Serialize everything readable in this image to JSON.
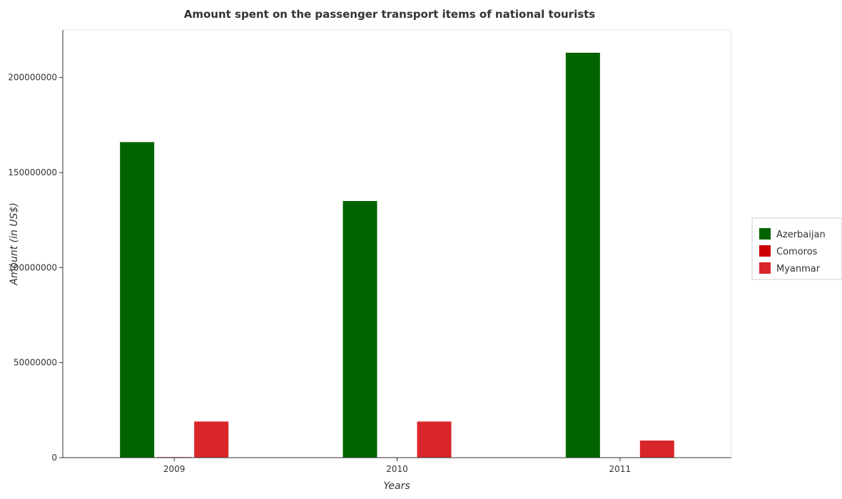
{
  "chart_data": {
    "type": "bar",
    "title": "Amount spent on the passenger transport items of national tourists",
    "xlabel": "Years",
    "ylabel": "Amount (in US$)",
    "categories": [
      "2009",
      "2010",
      "2011"
    ],
    "series": [
      {
        "name": "Azerbaijan",
        "color": "#006400",
        "values": [
          166000000,
          135000000,
          213000000
        ]
      },
      {
        "name": "Comoros",
        "color": "#cc0000",
        "values": [
          300000,
          200000,
          200000
        ]
      },
      {
        "name": "Myanmar",
        "color": "#d9262b",
        "values": [
          19000000,
          19000000,
          9000000
        ]
      }
    ],
    "yticks": [
      0,
      50000000,
      100000000,
      150000000,
      200000000
    ],
    "ytick_labels": [
      "0",
      "50000000",
      "100000000",
      "150000000",
      "200000000"
    ],
    "ylim": [
      0,
      225000000
    ],
    "legend_position": "right",
    "grid": false
  }
}
